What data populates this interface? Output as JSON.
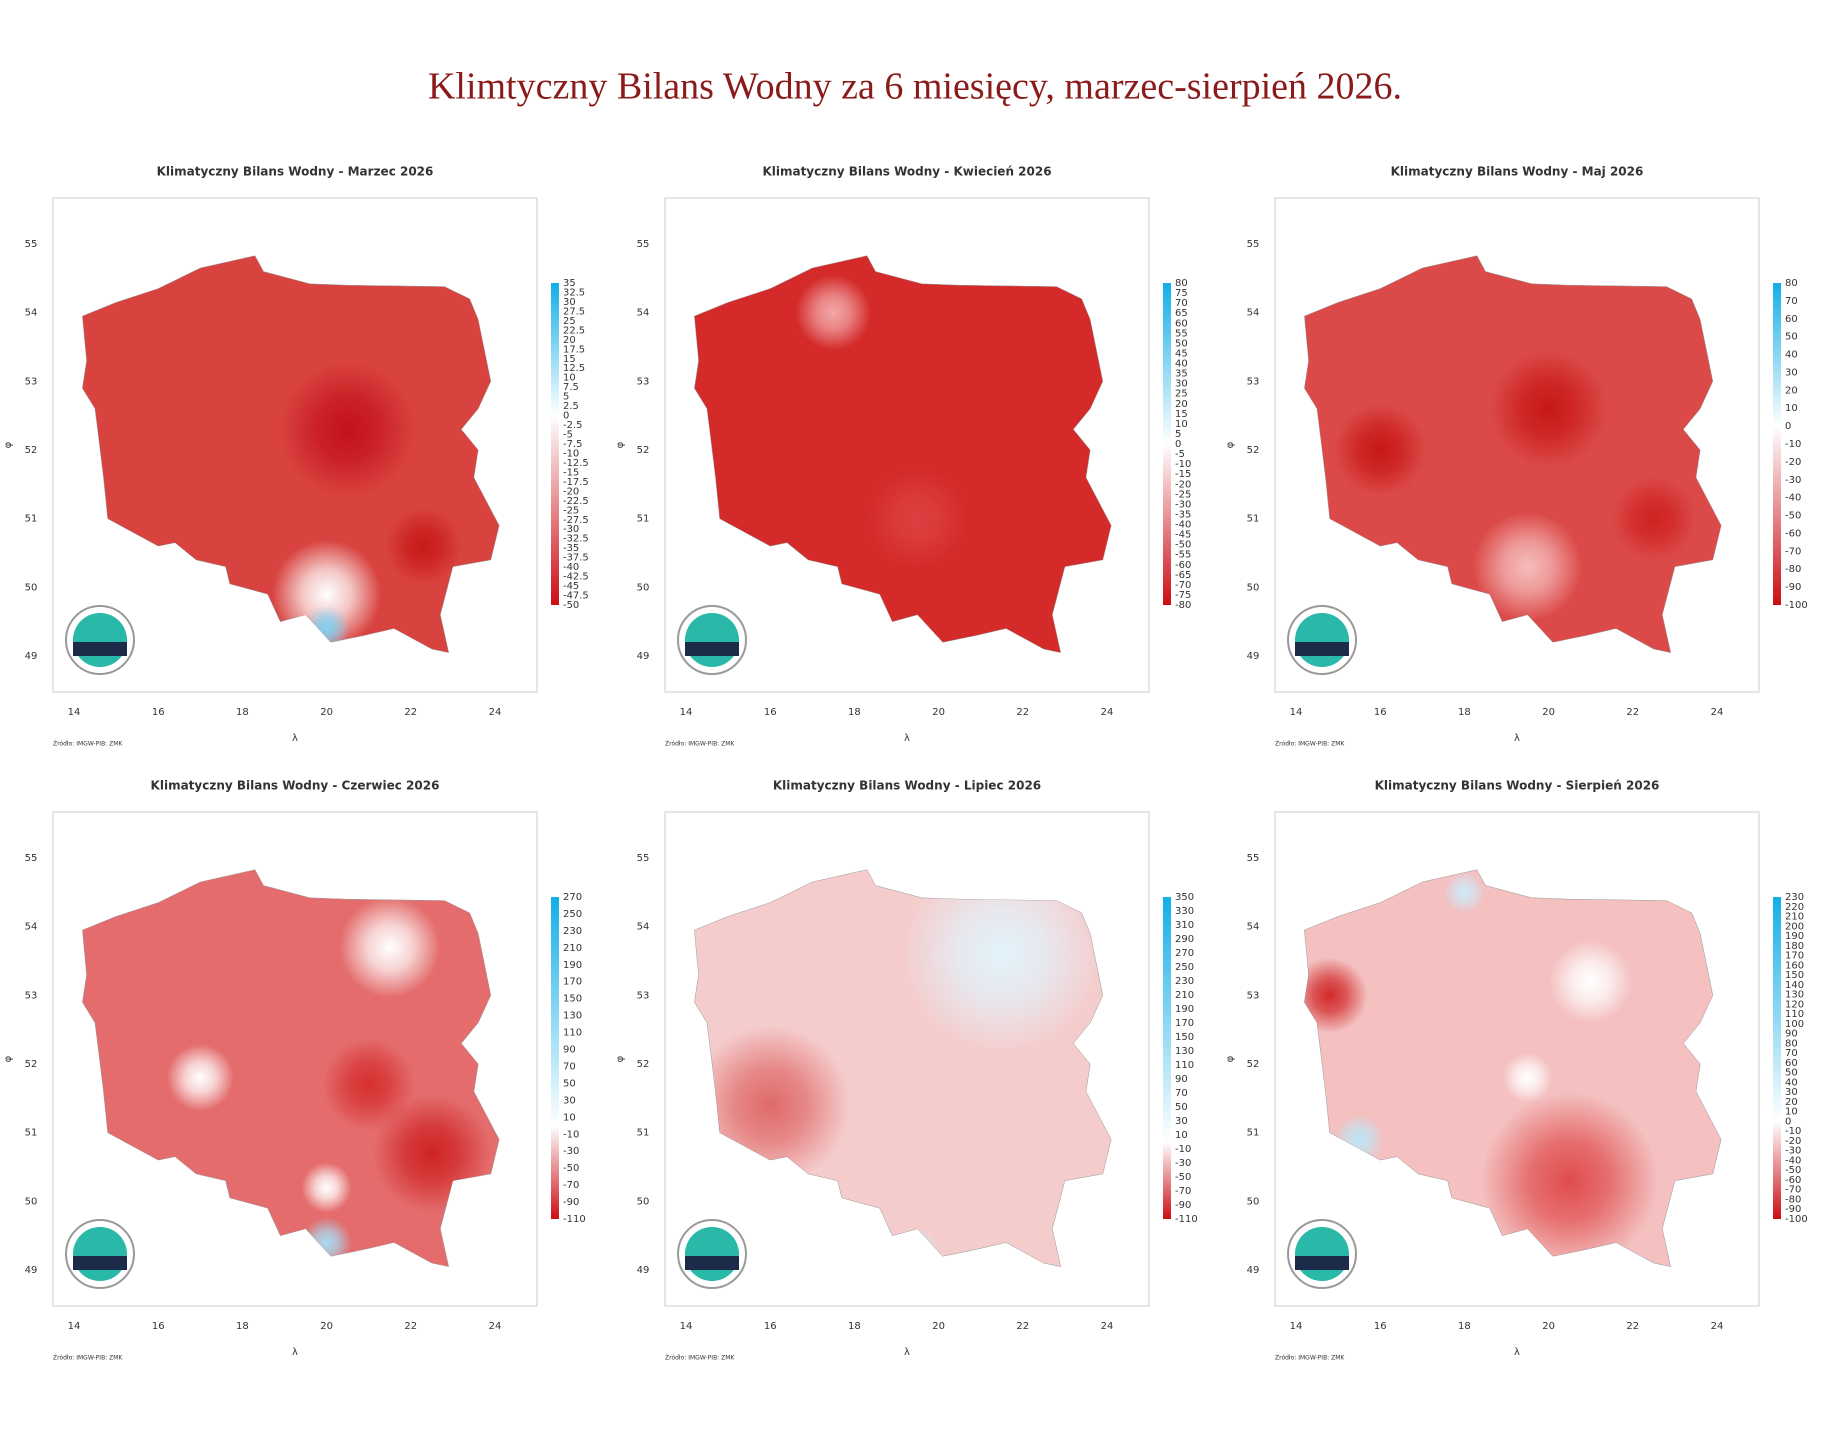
{
  "title": "Klimtyczny Bilans Wodny za 6 miesięcy, marzec-sierpień 2026.",
  "panels": [
    {
      "title": "Klimatyczny Bilans Wodny - Marzec 2026",
      "legend": [
        35,
        32.5,
        30,
        27.5,
        25,
        22.5,
        20,
        17.5,
        15,
        12.5,
        10,
        7.5,
        5,
        2.5,
        0,
        -2.5,
        -5,
        -7.5,
        -10,
        -12.5,
        -15,
        -17.5,
        -20,
        -22.5,
        -25,
        -27.5,
        -30,
        -32.5,
        -35,
        -37.5,
        -40,
        -42.5,
        -45,
        -47.5,
        -50
      ],
      "xticks": [
        14,
        16,
        18,
        20,
        22,
        24
      ],
      "yticks": [
        55,
        54,
        53,
        52,
        51,
        50,
        49
      ],
      "x_label": "λ",
      "y_label": "φ",
      "source": "Źródło: IMGW-PIB: ZMK"
    },
    {
      "title": "Klimatyczny Bilans Wodny - Kwiecień 2026",
      "legend": [
        80,
        75,
        70,
        65,
        60,
        55,
        50,
        45,
        40,
        35,
        30,
        25,
        20,
        15,
        10,
        5,
        0,
        -5,
        -10,
        -15,
        -20,
        -25,
        -30,
        -35,
        -40,
        -45,
        -50,
        -55,
        -60,
        -65,
        -70,
        -75,
        -80
      ],
      "xticks": [
        14,
        16,
        18,
        20,
        22,
        24
      ],
      "yticks": [
        55,
        54,
        53,
        52,
        51,
        50,
        49
      ],
      "x_label": "λ",
      "y_label": "φ",
      "source": "Źródło: IMGW-PIB: ZMK"
    },
    {
      "title": "Klimatyczny Bilans Wodny - Maj 2026",
      "legend": [
        80,
        70,
        60,
        50,
        40,
        30,
        20,
        10,
        0,
        -10,
        -20,
        -30,
        -40,
        -50,
        -60,
        -70,
        -80,
        -90,
        -100
      ],
      "xticks": [
        14,
        16,
        18,
        20,
        22,
        24
      ],
      "yticks": [
        55,
        54,
        53,
        52,
        51,
        50,
        49
      ],
      "x_label": "λ",
      "y_label": "φ",
      "source": "Źródło: IMGW-PIB: ZMK"
    },
    {
      "title": "Klimatyczny Bilans Wodny - Czerwiec 2026",
      "legend": [
        270,
        250,
        230,
        210,
        190,
        170,
        150,
        130,
        110,
        90,
        70,
        50,
        30,
        10,
        -10,
        -30,
        -50,
        -70,
        -90,
        -110
      ],
      "xticks": [
        14,
        16,
        18,
        20,
        22,
        24
      ],
      "yticks": [
        55,
        54,
        53,
        52,
        51,
        50,
        49
      ],
      "x_label": "λ",
      "y_label": "φ",
      "source": "Źródło: IMGW-PIB: ZMK"
    },
    {
      "title": "Klimatyczny Bilans Wodny - Lipiec 2026",
      "legend": [
        350,
        330,
        310,
        290,
        270,
        250,
        230,
        210,
        190,
        170,
        150,
        130,
        110,
        90,
        70,
        50,
        30,
        10,
        -10,
        -30,
        -50,
        -70,
        -90,
        -110
      ],
      "xticks": [
        14,
        16,
        18,
        20,
        22,
        24
      ],
      "yticks": [
        55,
        54,
        53,
        52,
        51,
        50,
        49
      ],
      "x_label": "λ",
      "y_label": "φ",
      "source": "Źródło: IMGW-PIB: ZMK"
    },
    {
      "title": "Klimatyczny Bilans Wodny - Sierpień 2026",
      "legend": [
        230,
        220,
        210,
        200,
        190,
        180,
        170,
        160,
        150,
        140,
        130,
        120,
        110,
        100,
        90,
        80,
        70,
        60,
        50,
        40,
        30,
        20,
        10,
        0,
        -10,
        -20,
        -30,
        -40,
        -50,
        -60,
        -70,
        -80,
        -90,
        -100
      ],
      "xticks": [
        14,
        16,
        18,
        20,
        22,
        24
      ],
      "yticks": [
        55,
        54,
        53,
        52,
        51,
        50,
        49
      ],
      "x_label": "λ",
      "y_label": "φ",
      "source": "Źródło: IMGW-PIB: ZMK"
    }
  ]
}
